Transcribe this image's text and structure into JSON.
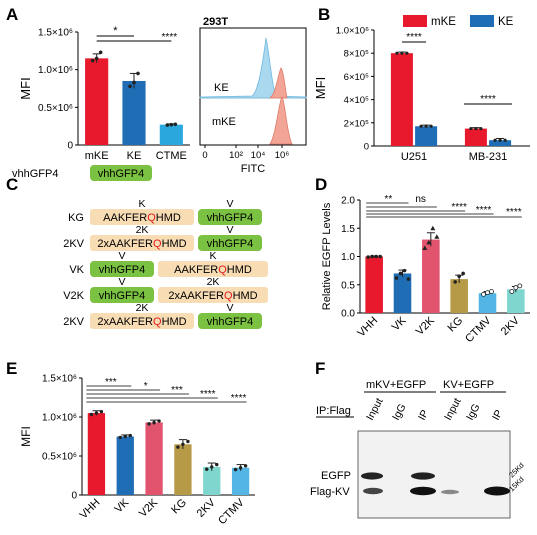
{
  "colors": {
    "red": "#e8192c",
    "blue": "#1f6db5",
    "cyan": "#2aa8de",
    "pink": "#e2536d",
    "olive": "#b79a47",
    "teal": "#7fd6cf",
    "lightblue": "#52b5e3",
    "green": "#7cc242",
    "beige": "#f7dcb4",
    "hist_ke": "#a9d8ef",
    "hist_mke": "#f2a596"
  },
  "panels": {
    "A": "A",
    "B": "B",
    "C": "C",
    "D": "D",
    "E": "E",
    "F": "F"
  },
  "chart_data": [
    {
      "id": "A",
      "type": "bar",
      "categories": [
        "mKE",
        "KE",
        "CTME"
      ],
      "values": [
        1150000,
        850000,
        270000
      ],
      "errors": [
        60000,
        100000,
        10000
      ],
      "points": [
        [
          1120000,
          1150000,
          1230000
        ],
        [
          780000,
          830000,
          950000
        ],
        [
          265000,
          270000,
          275000
        ]
      ],
      "ylabel": "MFI",
      "ylim": [
        0,
        1500000
      ],
      "yticks": [
        "0",
        "0.5×10⁶",
        "1.0×10⁶",
        "1.5×10⁶"
      ],
      "sig": [
        "*",
        "****"
      ]
    },
    {
      "id": "A-flow",
      "type": "area",
      "title": "293T",
      "xlabel": "FITC",
      "xticks": [
        "0",
        "10²",
        "10⁴",
        "10⁶"
      ],
      "series": [
        {
          "name": "KE"
        },
        {
          "name": "mKE"
        }
      ]
    },
    {
      "id": "B",
      "type": "bar",
      "categories": [
        "U251",
        "MB-231"
      ],
      "series": [
        {
          "name": "mKE",
          "values": [
            800000,
            150000
          ],
          "errors": [
            10000,
            8000
          ]
        },
        {
          "name": "KE",
          "values": [
            170000,
            50000
          ],
          "errors": [
            10000,
            15000
          ]
        }
      ],
      "ylabel": "MFI",
      "ylim": [
        0,
        1000000
      ],
      "yticks": [
        "0",
        "2×10⁵",
        "4×10⁵",
        "6×10⁵",
        "8×10⁵",
        "1.0×10⁶"
      ],
      "sig": [
        "****",
        "****"
      ],
      "legend": "top-right"
    },
    {
      "id": "D",
      "type": "bar",
      "categories": [
        "VHH",
        "VK",
        "V2K",
        "KG",
        "CTMV",
        "2KV"
      ],
      "values": [
        1.0,
        0.7,
        1.3,
        0.6,
        0.35,
        0.42
      ],
      "errors": [
        0.01,
        0.06,
        0.12,
        0.07,
        0.03,
        0.05
      ],
      "ylabel": "Relative EGFP Levels",
      "ylim": [
        0,
        2.0
      ],
      "yticks": [
        "0.0",
        "0.5",
        "1.0",
        "1.5",
        "2.0"
      ],
      "sig": [
        "**",
        "ns",
        "****",
        "****",
        "****"
      ]
    },
    {
      "id": "E",
      "type": "bar",
      "categories": [
        "VHH",
        "VK",
        "V2K",
        "KG",
        "2KV",
        "CTMV"
      ],
      "values": [
        1050000,
        750000,
        930000,
        650000,
        360000,
        350000
      ],
      "errors": [
        30000,
        20000,
        30000,
        60000,
        50000,
        40000
      ],
      "ylabel": "MFI",
      "ylim": [
        0,
        1500000
      ],
      "yticks": [
        "0",
        "0.5×10⁶",
        "1.0×10⁶",
        "1.5×10⁶"
      ],
      "sig": [
        "***",
        "*",
        "***",
        "****",
        "****"
      ]
    }
  ],
  "C": {
    "top_label": "vhhGFP4",
    "vhh": "vhhGFP4",
    "rows": [
      {
        "name": "KG",
        "pre": "AAKFER",
        "q": "Q",
        "post": "HMD",
        "tag1": "K",
        "tag2": "V"
      },
      {
        "name": "2KV",
        "pre": "2xAAKFER",
        "q": "Q",
        "post": "HMD",
        "tag1": "2K",
        "tag2": "V"
      },
      {
        "name": "VK",
        "pre": "AAKFER",
        "q": "Q",
        "post": "HMD",
        "tag1": "V",
        "tag2": "K"
      },
      {
        "name": "V2K",
        "pre": "2xAAKFER",
        "q": "Q",
        "post": "HMD",
        "tag1": "V",
        "tag2": "2K"
      },
      {
        "name": "2KV",
        "pre": "2xAAKFER",
        "q": "Q",
        "post": "HMD",
        "tag1": "2K",
        "tag2": "V"
      }
    ]
  },
  "F": {
    "group1": "mKV+EGFP",
    "group2": "KV+EGFP",
    "ip": "IP:Flag",
    "lanes": [
      "Input",
      "IgG",
      "IP",
      "Input",
      "IgG",
      "IP"
    ],
    "egfp": "EGFP",
    "flag": "Flag-KV",
    "mw1": "25Kd",
    "mw2": "15Kd"
  }
}
